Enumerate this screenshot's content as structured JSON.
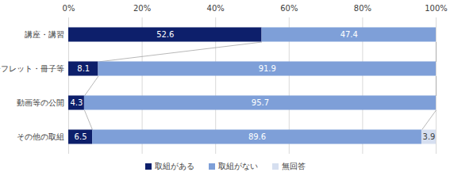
{
  "chart_data": {
    "type": "bar",
    "orientation": "horizontal",
    "stacked": true,
    "data_labels": true,
    "grid": true,
    "legend": "bottom",
    "categories": [
      "講座・講習",
      "リーフレット・冊子等",
      "動画等の公開",
      "その他の取組"
    ],
    "series": [
      {
        "name": "取組がある",
        "color": "#0d1f6b",
        "values": [
          52.6,
          8.1,
          4.3,
          6.5
        ]
      },
      {
        "name": "取組がない",
        "color": "#7e9fd8",
        "values": [
          47.4,
          91.9,
          95.7,
          89.6
        ]
      },
      {
        "name": "無回答",
        "color": "#d6dff0",
        "values": [
          null,
          null,
          null,
          3.9
        ]
      }
    ],
    "xlim": [
      0,
      100
    ],
    "xticks": [
      {
        "value": 0,
        "label": "0%"
      },
      {
        "value": 20,
        "label": "20%"
      },
      {
        "value": 40,
        "label": "40%"
      },
      {
        "value": 60,
        "label": "60%"
      },
      {
        "value": 80,
        "label": "80%"
      },
      {
        "value": 100,
        "label": "100%"
      }
    ]
  }
}
